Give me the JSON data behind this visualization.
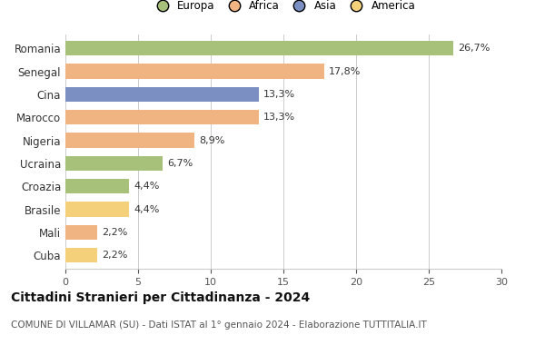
{
  "countries": [
    "Romania",
    "Senegal",
    "Cina",
    "Marocco",
    "Nigeria",
    "Ucraina",
    "Croazia",
    "Brasile",
    "Mali",
    "Cuba"
  ],
  "values": [
    26.7,
    17.8,
    13.3,
    13.3,
    8.9,
    6.7,
    4.4,
    4.4,
    2.2,
    2.2
  ],
  "labels": [
    "26,7%",
    "17,8%",
    "13,3%",
    "13,3%",
    "8,9%",
    "6,7%",
    "4,4%",
    "4,4%",
    "2,2%",
    "2,2%"
  ],
  "colors": [
    "#a8c17a",
    "#f0b482",
    "#7b8fc2",
    "#f0b482",
    "#f0b482",
    "#a8c17a",
    "#a8c17a",
    "#f5d07a",
    "#f0b482",
    "#f5d07a"
  ],
  "legend": [
    {
      "label": "Europa",
      "color": "#a8c17a"
    },
    {
      "label": "Africa",
      "color": "#f0b482"
    },
    {
      "label": "Asia",
      "color": "#7b8fc2"
    },
    {
      "label": "America",
      "color": "#f5d07a"
    }
  ],
  "title": "Cittadini Stranieri per Cittadinanza - 2024",
  "subtitle": "COMUNE DI VILLAMAR (SU) - Dati ISTAT al 1° gennaio 2024 - Elaborazione TUTTITALIA.IT",
  "xlim": [
    0,
    30
  ],
  "xticks": [
    0,
    5,
    10,
    15,
    20,
    25,
    30
  ],
  "bar_height": 0.65,
  "background_color": "#ffffff",
  "grid_color": "#cccccc",
  "label_fontsize": 8,
  "title_fontsize": 10,
  "subtitle_fontsize": 7.5,
  "tick_fontsize": 8,
  "ylabel_fontsize": 8.5
}
